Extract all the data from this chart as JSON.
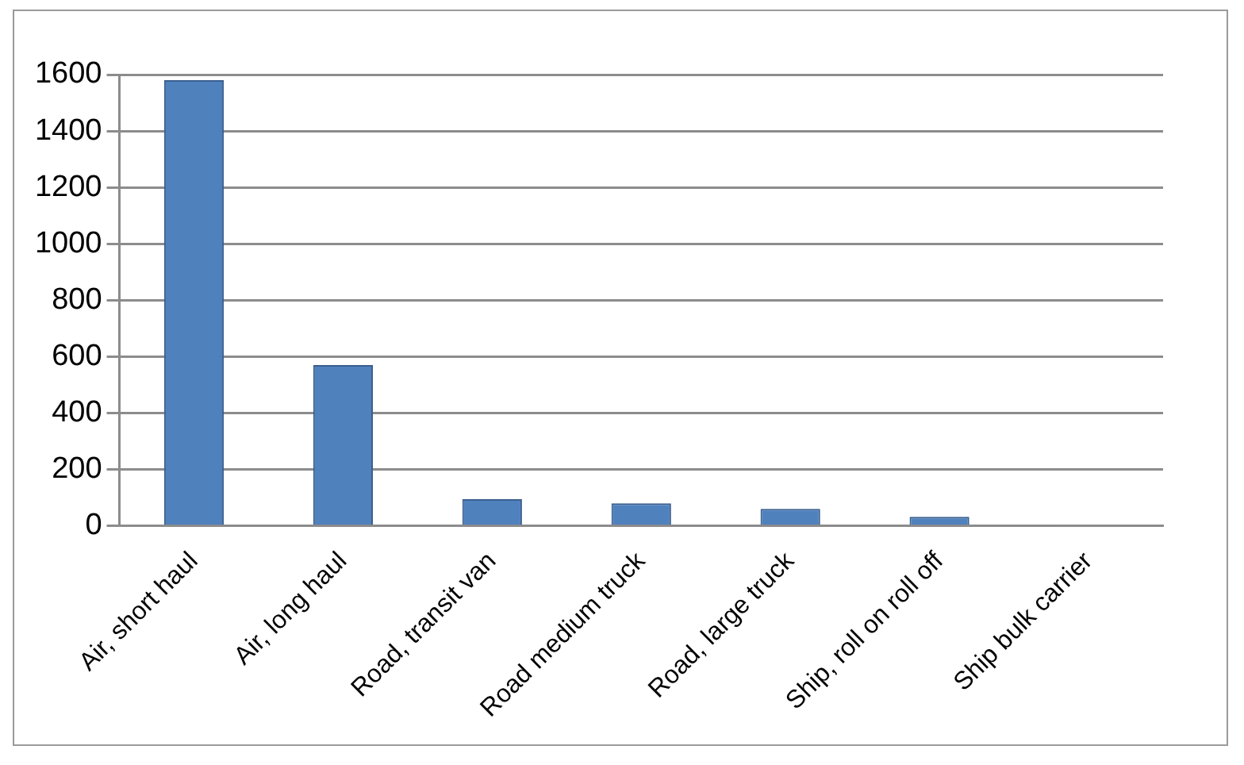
{
  "chart_data": {
    "type": "bar",
    "categories": [
      "Air, short haul",
      "Air, long haul",
      "Road, transit van",
      "Road medium truck",
      "Road, large truck",
      "Ship, roll on roll off",
      "Ship bulk carrier"
    ],
    "values": [
      1580,
      570,
      95,
      80,
      60,
      32,
      5
    ],
    "color": "#4f81bd",
    "ylim": [
      0,
      1600
    ],
    "yticks": [
      0,
      200,
      400,
      600,
      800,
      1000,
      1200,
      1400,
      1600
    ],
    "grid": "y",
    "legend": false
  }
}
